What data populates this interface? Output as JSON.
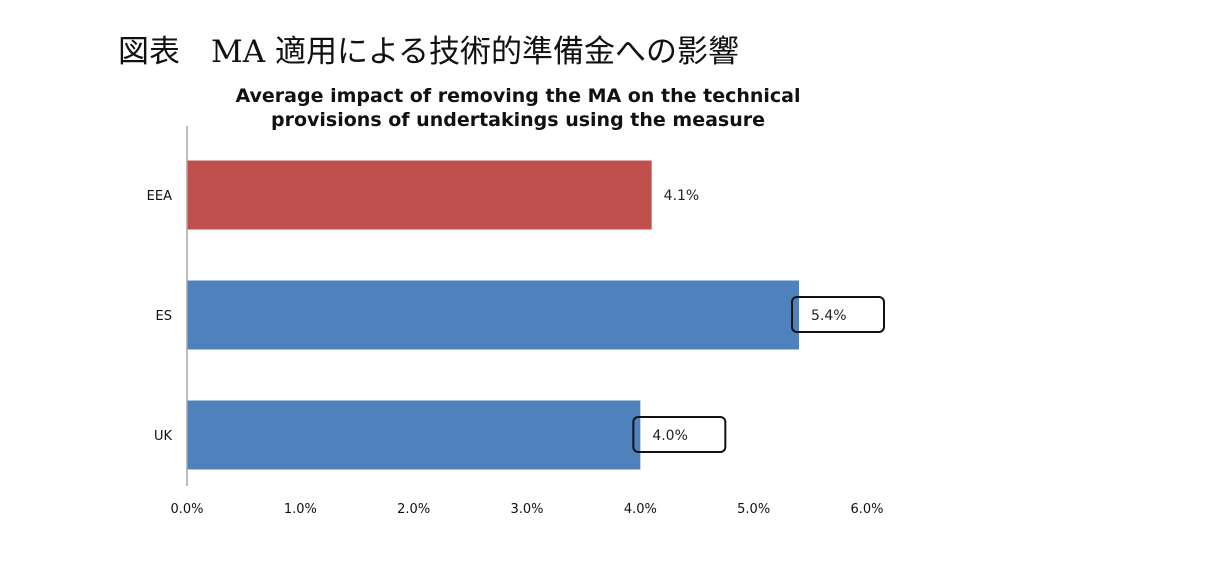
{
  "heading": "図表　MA 適用による技術的準備金への影響",
  "chart_data": {
    "type": "bar",
    "orientation": "horizontal",
    "title": "Average impact of removing the MA on the technical provisions of undertakings using the measure",
    "categories": [
      "EEA",
      "ES",
      "UK"
    ],
    "values": [
      4.1,
      5.4,
      4.0
    ],
    "value_labels": [
      "4.1%",
      "5.4%",
      "4.0%"
    ],
    "highlighted": [
      false,
      true,
      true
    ],
    "bar_colors": [
      "#c0504d",
      "#4f81bd",
      "#4f81bd"
    ],
    "xlim": [
      0,
      6
    ],
    "x_ticks": [
      "0.0%",
      "1.0%",
      "2.0%",
      "3.0%",
      "4.0%",
      "5.0%",
      "6.0%"
    ],
    "xlabel": "",
    "ylabel": "",
    "grid": false,
    "legend": "none"
  }
}
